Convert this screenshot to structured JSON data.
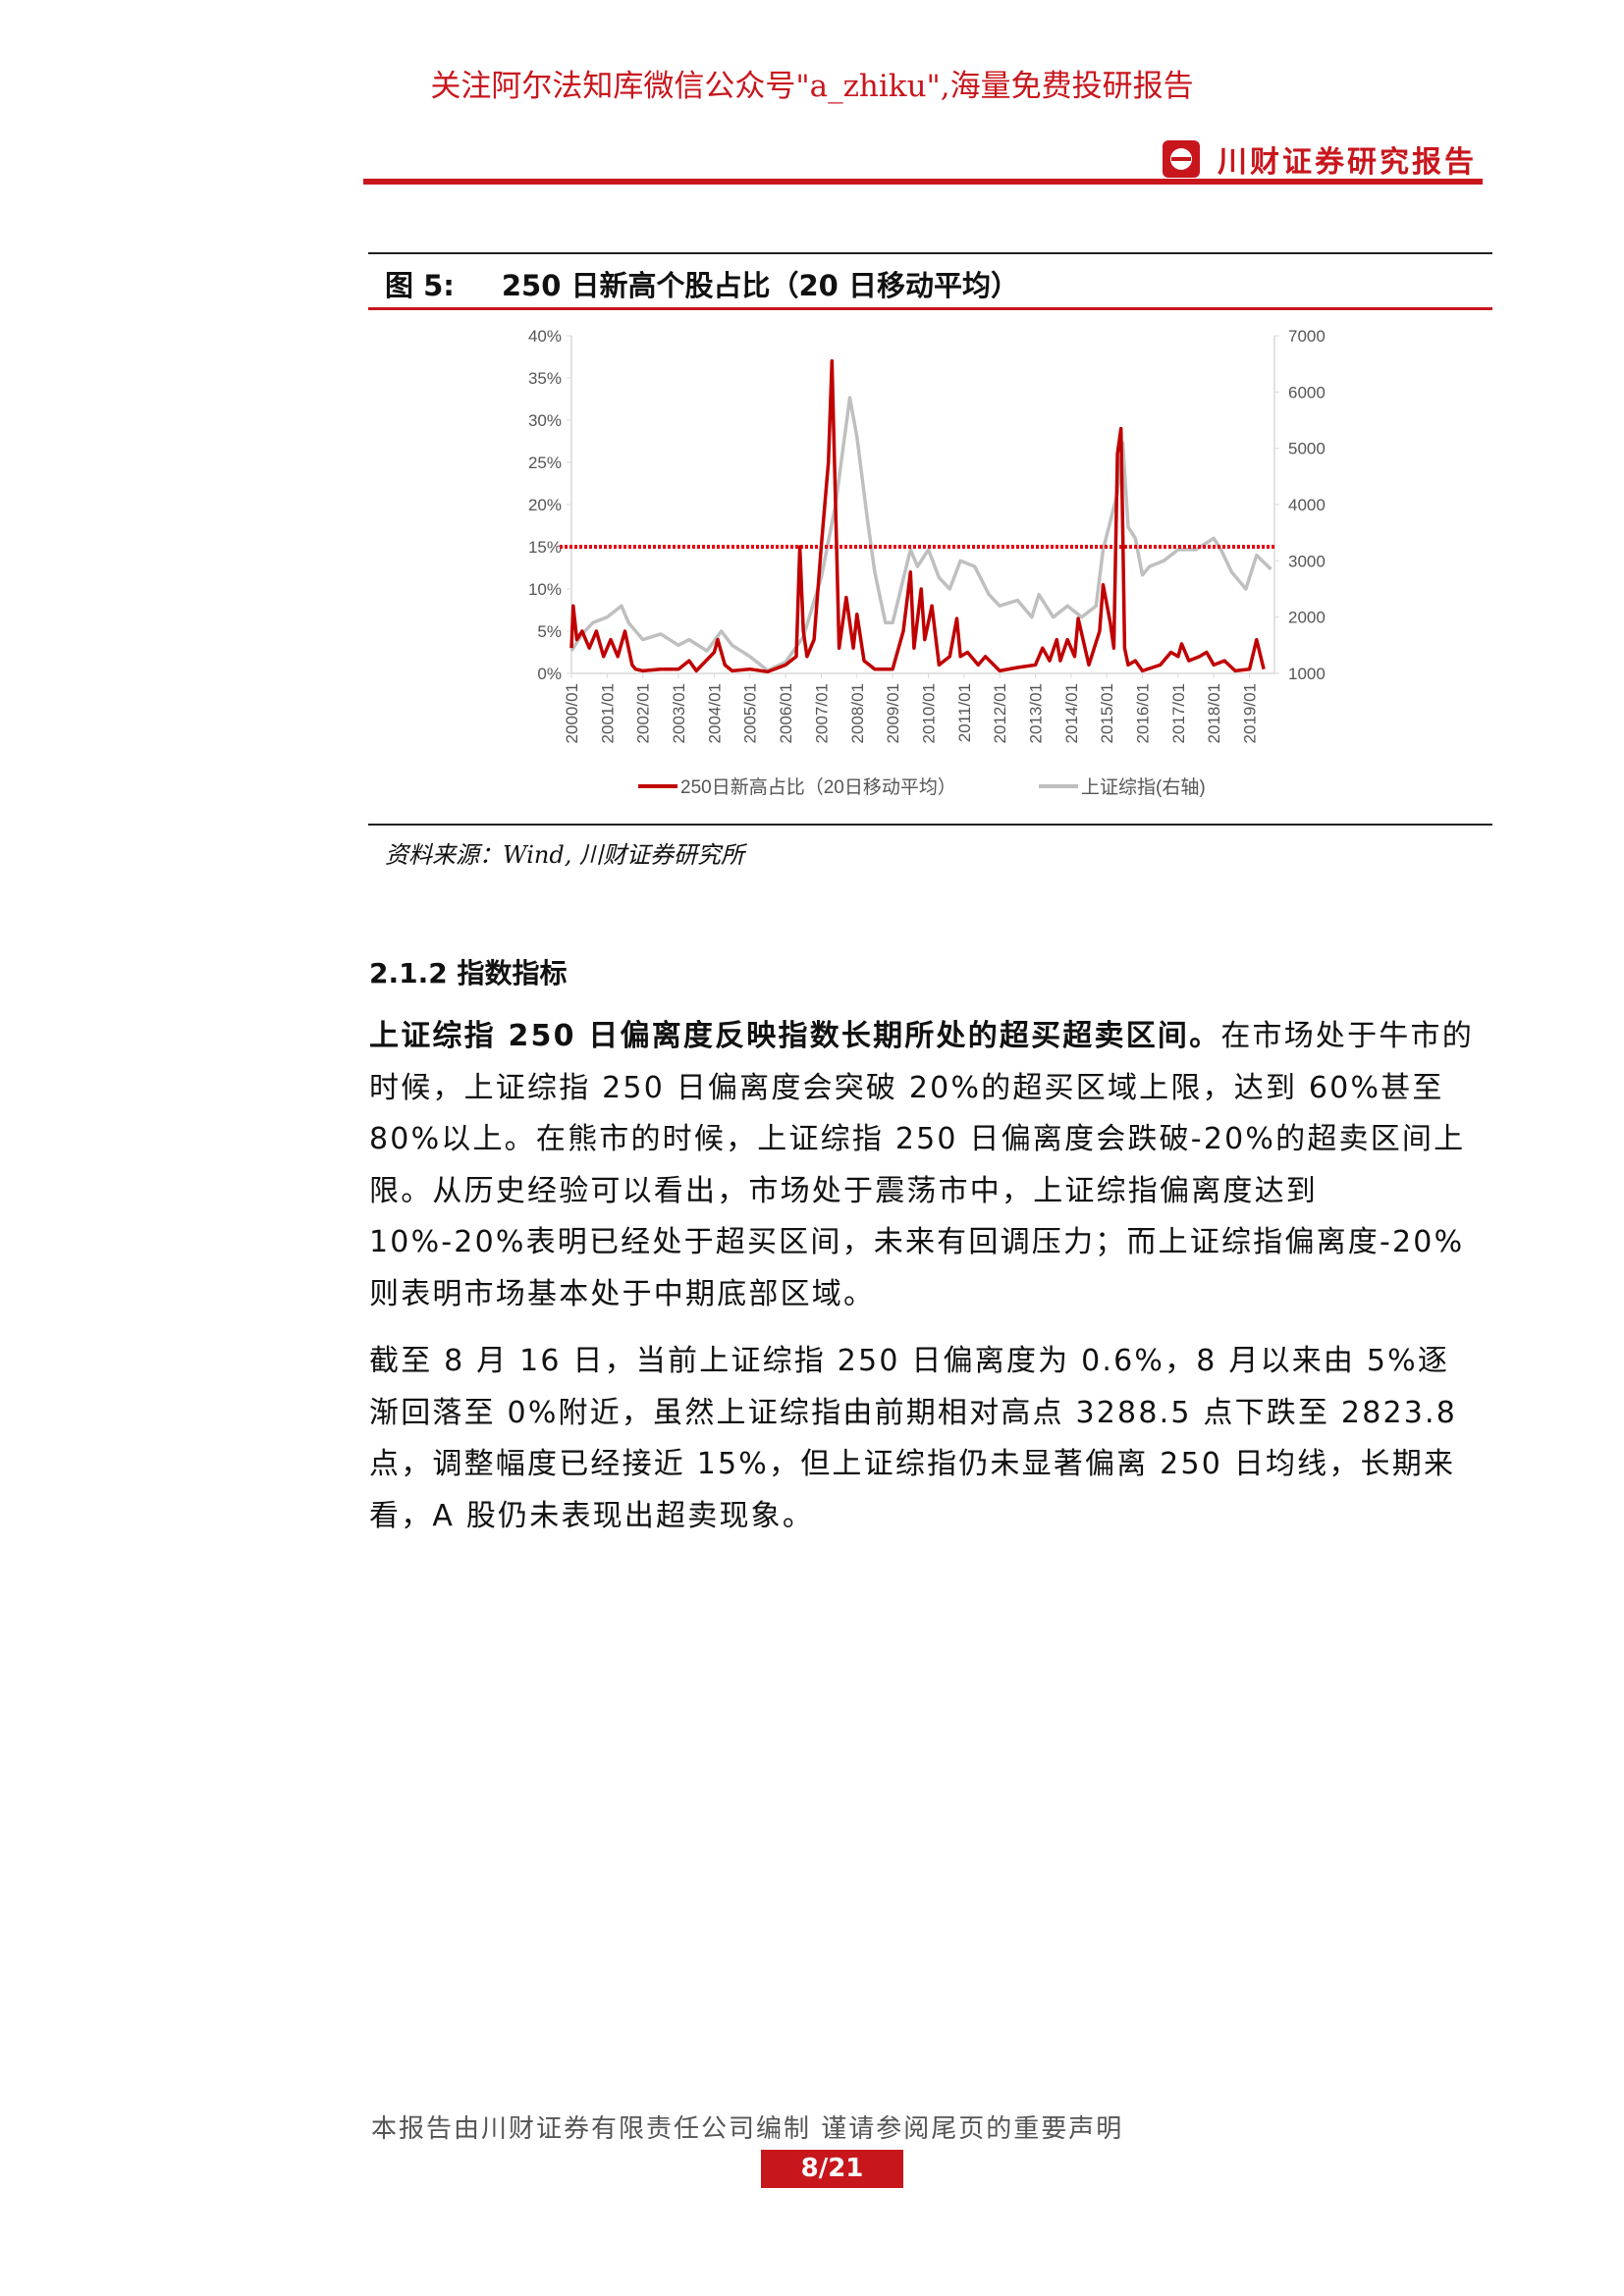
{
  "header": {
    "promo": "关注阿尔法知库微信公众号\"a_zhiku\",海量免费投研报告",
    "brand": "川财证券研究报告"
  },
  "figure": {
    "label": "图 5:",
    "title": "250 日新高个股占比（20 日移动平均）",
    "source": "资料来源：Wind, 川财证券研究所"
  },
  "chart_data": {
    "type": "line",
    "title": "250 日新高个股占比（20 日移动平均）",
    "x_ticks": [
      "2000/01",
      "2001/01",
      "2002/01",
      "2003/01",
      "2004/01",
      "2005/01",
      "2006/01",
      "2007/01",
      "2008/01",
      "2009/01",
      "2010/01",
      "2011/01",
      "2012/01",
      "2013/01",
      "2014/01",
      "2015/01",
      "2016/01",
      "2017/01",
      "2018/01",
      "2019/01"
    ],
    "y_left": {
      "range": [
        0,
        40
      ],
      "ticks": [
        "0%",
        "5%",
        "10%",
        "15%",
        "20%",
        "25%",
        "30%",
        "35%",
        "40%"
      ]
    },
    "y_right": {
      "range": [
        1000,
        7000
      ],
      "ticks": [
        "1000",
        "2000",
        "3000",
        "4000",
        "5000",
        "6000",
        "7000"
      ]
    },
    "reference_line": {
      "value": 15,
      "axis": "left",
      "style": "dotted",
      "color": "#e60012"
    },
    "legend_position": "bottom",
    "series": [
      {
        "name": "250日新高占比（20日移动平均）",
        "axis": "left",
        "color": "#c00000",
        "points": [
          [
            2000.0,
            3
          ],
          [
            2000.05,
            8
          ],
          [
            2000.15,
            4
          ],
          [
            2000.3,
            5
          ],
          [
            2000.5,
            3
          ],
          [
            2000.7,
            5
          ],
          [
            2000.9,
            2
          ],
          [
            2001.1,
            4
          ],
          [
            2001.3,
            2
          ],
          [
            2001.5,
            5
          ],
          [
            2001.7,
            1
          ],
          [
            2001.8,
            0.5
          ],
          [
            2002,
            0.3
          ],
          [
            2002.5,
            0.5
          ],
          [
            2003,
            0.5
          ],
          [
            2003.3,
            1.5
          ],
          [
            2003.5,
            0.3
          ],
          [
            2004,
            2.5
          ],
          [
            2004.1,
            4
          ],
          [
            2004.3,
            1
          ],
          [
            2004.5,
            0.3
          ],
          [
            2005,
            0.5
          ],
          [
            2005.5,
            0.2
          ],
          [
            2006,
            1
          ],
          [
            2006.3,
            2
          ],
          [
            2006.4,
            15
          ],
          [
            2006.5,
            5
          ],
          [
            2006.6,
            2
          ],
          [
            2006.8,
            4
          ],
          [
            2007,
            15
          ],
          [
            2007.2,
            25
          ],
          [
            2007.3,
            37
          ],
          [
            2007.4,
            20
          ],
          [
            2007.5,
            3
          ],
          [
            2007.7,
            9
          ],
          [
            2007.9,
            3
          ],
          [
            2008,
            7
          ],
          [
            2008.2,
            1.5
          ],
          [
            2008.5,
            0.5
          ],
          [
            2009,
            0.5
          ],
          [
            2009.3,
            5
          ],
          [
            2009.5,
            12
          ],
          [
            2009.6,
            3
          ],
          [
            2009.8,
            10
          ],
          [
            2009.9,
            4
          ],
          [
            2010.1,
            8
          ],
          [
            2010.3,
            1
          ],
          [
            2010.6,
            2
          ],
          [
            2010.8,
            6.5
          ],
          [
            2010.9,
            2
          ],
          [
            2011.1,
            2.5
          ],
          [
            2011.4,
            1
          ],
          [
            2011.6,
            2
          ],
          [
            2012,
            0.3
          ],
          [
            2012.5,
            0.7
          ],
          [
            2013,
            1
          ],
          [
            2013.2,
            3
          ],
          [
            2013.4,
            1.5
          ],
          [
            2013.6,
            4
          ],
          [
            2013.7,
            1.5
          ],
          [
            2013.9,
            4
          ],
          [
            2014.1,
            2
          ],
          [
            2014.2,
            6.5
          ],
          [
            2014.5,
            1
          ],
          [
            2014.8,
            5
          ],
          [
            2014.9,
            10.5
          ],
          [
            2015.1,
            6
          ],
          [
            2015.2,
            3
          ],
          [
            2015.3,
            26
          ],
          [
            2015.4,
            29
          ],
          [
            2015.45,
            17
          ],
          [
            2015.5,
            3
          ],
          [
            2015.6,
            1
          ],
          [
            2015.8,
            1.5
          ],
          [
            2016,
            0.3
          ],
          [
            2016.5,
            1
          ],
          [
            2016.8,
            2.5
          ],
          [
            2017,
            2
          ],
          [
            2017.1,
            3.5
          ],
          [
            2017.3,
            1.5
          ],
          [
            2017.6,
            2
          ],
          [
            2017.8,
            2.5
          ],
          [
            2018,
            1
          ],
          [
            2018.3,
            1.5
          ],
          [
            2018.6,
            0.3
          ],
          [
            2019,
            0.5
          ],
          [
            2019.2,
            4
          ],
          [
            2019.4,
            0.5
          ]
        ]
      },
      {
        "name": "上证综指(右轴)",
        "axis": "right",
        "color": "#bfbfbf",
        "points": [
          [
            2000,
            1400
          ],
          [
            2000.3,
            1700
          ],
          [
            2000.6,
            1900
          ],
          [
            2001,
            2000
          ],
          [
            2001.4,
            2200
          ],
          [
            2001.6,
            1900
          ],
          [
            2002,
            1600
          ],
          [
            2002.5,
            1700
          ],
          [
            2003,
            1500
          ],
          [
            2003.3,
            1600
          ],
          [
            2003.8,
            1400
          ],
          [
            2004.2,
            1750
          ],
          [
            2004.5,
            1500
          ],
          [
            2005,
            1300
          ],
          [
            2005.5,
            1050
          ],
          [
            2006,
            1200
          ],
          [
            2006.5,
            1650
          ],
          [
            2007,
            2700
          ],
          [
            2007.4,
            4000
          ],
          [
            2007.8,
            5900
          ],
          [
            2008,
            5200
          ],
          [
            2008.3,
            3700
          ],
          [
            2008.5,
            2800
          ],
          [
            2008.8,
            1900
          ],
          [
            2009,
            1900
          ],
          [
            2009.5,
            3200
          ],
          [
            2009.7,
            2900
          ],
          [
            2010,
            3200
          ],
          [
            2010.3,
            2700
          ],
          [
            2010.6,
            2500
          ],
          [
            2010.9,
            3000
          ],
          [
            2011.3,
            2900
          ],
          [
            2011.7,
            2400
          ],
          [
            2012,
            2200
          ],
          [
            2012.5,
            2300
          ],
          [
            2012.9,
            2000
          ],
          [
            2013.1,
            2400
          ],
          [
            2013.5,
            2000
          ],
          [
            2013.9,
            2200
          ],
          [
            2014.3,
            2000
          ],
          [
            2014.7,
            2200
          ],
          [
            2014.9,
            3200
          ],
          [
            2015.3,
            4200
          ],
          [
            2015.45,
            5100
          ],
          [
            2015.6,
            3600
          ],
          [
            2015.8,
            3400
          ],
          [
            2016,
            2750
          ],
          [
            2016.2,
            2900
          ],
          [
            2016.6,
            3000
          ],
          [
            2017,
            3200
          ],
          [
            2017.5,
            3200
          ],
          [
            2018,
            3400
          ],
          [
            2018.2,
            3200
          ],
          [
            2018.5,
            2800
          ],
          [
            2018.9,
            2500
          ],
          [
            2019.2,
            3100
          ],
          [
            2019.6,
            2850
          ]
        ]
      }
    ]
  },
  "section": {
    "heading": "2.1.2 指数指标"
  },
  "body": {
    "p1_bold": "上证综指 250 日偏离度反映指数长期所处的超买超卖区间。",
    "p1_rest": "在市场处于牛市的时候，上证综指 250 日偏离度会突破 20%的超买区域上限，达到 60%甚至 80%以上。在熊市的时候，上证综指 250 日偏离度会跌破-20%的超卖区间上限。从历史经验可以看出，市场处于震荡市中，上证综指偏离度达到 10%-20%表明已经处于超买区间，未来有回调压力；而上证综指偏离度-20%则表明市场基本处于中期底部区域。",
    "p2": "截至 8 月 16 日，当前上证综指 250 日偏离度为 0.6%，8 月以来由 5%逐渐回落至 0%附近，虽然上证综指由前期相对高点 3288.5 点下跌至 2823.8 点，调整幅度已经接近 15%，但上证综指仍未显著偏离 250 日均线，长期来看，A 股仍未表现出超卖现象。"
  },
  "footer": {
    "disclaimer": "本报告由川财证券有限责任公司编制  谨请参阅尾页的重要声明",
    "page": "8/21"
  }
}
